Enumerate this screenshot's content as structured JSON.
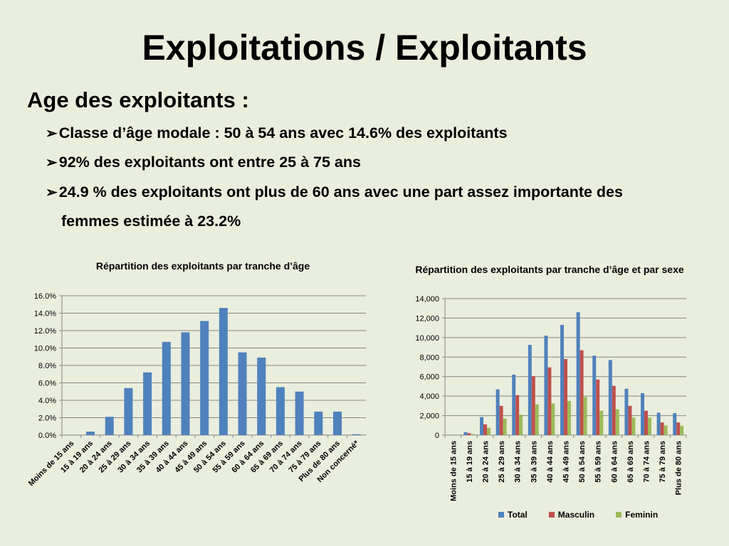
{
  "slide": {
    "title": "Exploitations / Exploitants",
    "subtitle": "Age des exploitants :",
    "bullets": [
      {
        "arrow": "➢",
        "text": "Classe d’âge modale : 50 à 54 ans avec 14.6% des exploitants"
      },
      {
        "arrow": "➢",
        "text": "92% des exploitants ont entre 25 à 75 ans"
      },
      {
        "arrow": "➢",
        "text": "24.9 % des exploitants ont plus de 60 ans avec une part assez importante des"
      }
    ],
    "bullet_continuation": "femmes estimée à 23.2%"
  },
  "chart_data": [
    {
      "type": "bar",
      "title": "Répartition des exploitants par tranche d’âge",
      "categories": [
        "Moins de 15 ans",
        "15 à 19 ans",
        "20 à 24 ans",
        "25 à 29 ans",
        "30 à 34 ans",
        "35 à 39 ans",
        "40 à 44 ans",
        "45 à 49 ans",
        "50 à 54 ans",
        "55 à 59 ans",
        "60 à 64 ans",
        "65 à 69 ans",
        "70 à 74 ans",
        "75 à 79 ans",
        "Plus de 80 ans",
        "Non concerné*"
      ],
      "values": [
        0.0,
        0.4,
        2.1,
        5.4,
        7.2,
        10.7,
        11.8,
        13.1,
        14.6,
        9.5,
        8.9,
        5.5,
        5.0,
        2.7,
        2.7,
        0.1
      ],
      "ylim": [
        0,
        16
      ],
      "yticks": [
        "0.0%",
        "2.0%",
        "4.0%",
        "6.0%",
        "8.0%",
        "10.0%",
        "12.0%",
        "14.0%",
        "16.0%"
      ],
      "grid": true,
      "color": "#4f81bd"
    },
    {
      "type": "bar",
      "title": "Répartition des exploitants par tranche d’âge et par sexe",
      "categories": [
        "Moins de 15 ans",
        "15 à 19 ans",
        "20 à 24 ans",
        "25 à 29 ans",
        "30 à 34 ans",
        "35 à 39 ans",
        "40 à 44 ans",
        "45 à 49 ans",
        "50 à 54 ans",
        "55 à 59 ans",
        "60 à 64 ans",
        "65 à 69 ans",
        "70 à 74 ans",
        "75 à 79 ans",
        "Plus de 80 ans"
      ],
      "series": [
        {
          "name": "Total",
          "color": "#4f81bd",
          "values": [
            0,
            300,
            1850,
            4700,
            6200,
            9250,
            10200,
            11300,
            12600,
            8150,
            7700,
            4750,
            4300,
            2300,
            2250
          ]
        },
        {
          "name": "Masculin",
          "color": "#c0504d",
          "values": [
            0,
            200,
            1100,
            3000,
            4100,
            6050,
            6950,
            7800,
            8700,
            5700,
            5050,
            3000,
            2500,
            1300,
            1300
          ]
        },
        {
          "name": "Feminin",
          "color": "#9bbb59",
          "values": [
            0,
            100,
            750,
            1700,
            2100,
            3150,
            3250,
            3500,
            3900,
            2500,
            2650,
            1800,
            1800,
            1000,
            950
          ]
        }
      ],
      "ylim": [
        0,
        14000
      ],
      "yticks": [
        "0",
        "2,000",
        "4,000",
        "6,000",
        "8,000",
        "10,000",
        "12,000",
        "14,000"
      ],
      "grid": true,
      "legend": "bottom"
    }
  ]
}
